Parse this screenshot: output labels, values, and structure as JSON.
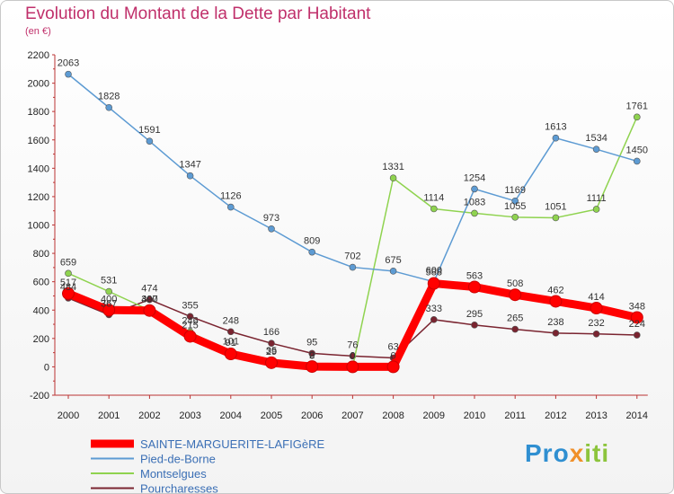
{
  "title": "Evolution du Montant de la Dette par Habitant",
  "subtitle": "(en €)",
  "logo": {
    "part1": "Pro",
    "part2": "x",
    "part3": "iti"
  },
  "chart_data": {
    "type": "line",
    "x": [
      "2000",
      "2001",
      "2002",
      "2003",
      "2004",
      "2005",
      "2006",
      "2007",
      "2008",
      "2009",
      "2010",
      "2011",
      "2012",
      "2013",
      "2014"
    ],
    "ylim": [
      -200,
      2200
    ],
    "yticks": [
      -200,
      0,
      200,
      400,
      600,
      800,
      1000,
      1200,
      1400,
      1600,
      1800,
      2000,
      2200
    ],
    "grid": false,
    "legend_position": "bottom-left",
    "series": [
      {
        "name": "SAINTE-MARGUERITE-LAFIGèRE",
        "color": "#ff0000",
        "values": [
          517,
          400,
          397,
          215,
          91,
          29,
          2,
          0,
          0,
          588,
          563,
          508,
          462,
          414,
          348
        ],
        "labels": [
          "517",
          "400",
          "397",
          "215",
          "91",
          "29",
          "2",
          "0",
          "0",
          "588",
          "563",
          "508",
          "462",
          "414",
          "348"
        ]
      },
      {
        "name": "Pied-de-Borne",
        "color": "#5d9bd3",
        "values": [
          2063,
          1828,
          1591,
          1347,
          1126,
          973,
          809,
          702,
          675,
          600,
          1254,
          1169,
          1613,
          1534,
          1450
        ],
        "labels": [
          "2063",
          "1828",
          "1591",
          "1347",
          "1126",
          "973",
          "809",
          "702",
          "675",
          "600",
          "1254",
          "1169",
          "1613",
          "1534",
          "1450"
        ]
      },
      {
        "name": "Montselgues",
        "color": "#8fd34f",
        "values": [
          659,
          531,
          400,
          246,
          101,
          35,
          0,
          0,
          1331,
          1114,
          1083,
          1055,
          1051,
          1111,
          1761
        ],
        "labels": [
          "659",
          "531",
          "400",
          "246",
          "101",
          "35",
          "0",
          "0",
          "1331",
          "1114",
          "1083",
          "1055",
          "1051",
          "1111",
          "1761"
        ]
      },
      {
        "name": "Pourcharesses",
        "color": "#7a2430",
        "values": [
          484,
          367,
          474,
          355,
          248,
          166,
          95,
          76,
          63,
          333,
          295,
          265,
          238,
          232,
          224
        ],
        "labels": [
          "484",
          "367",
          "474",
          "355",
          "248",
          "166",
          "95",
          "76",
          "63",
          "333",
          "295",
          "265",
          "238",
          "232",
          "224"
        ]
      }
    ]
  }
}
